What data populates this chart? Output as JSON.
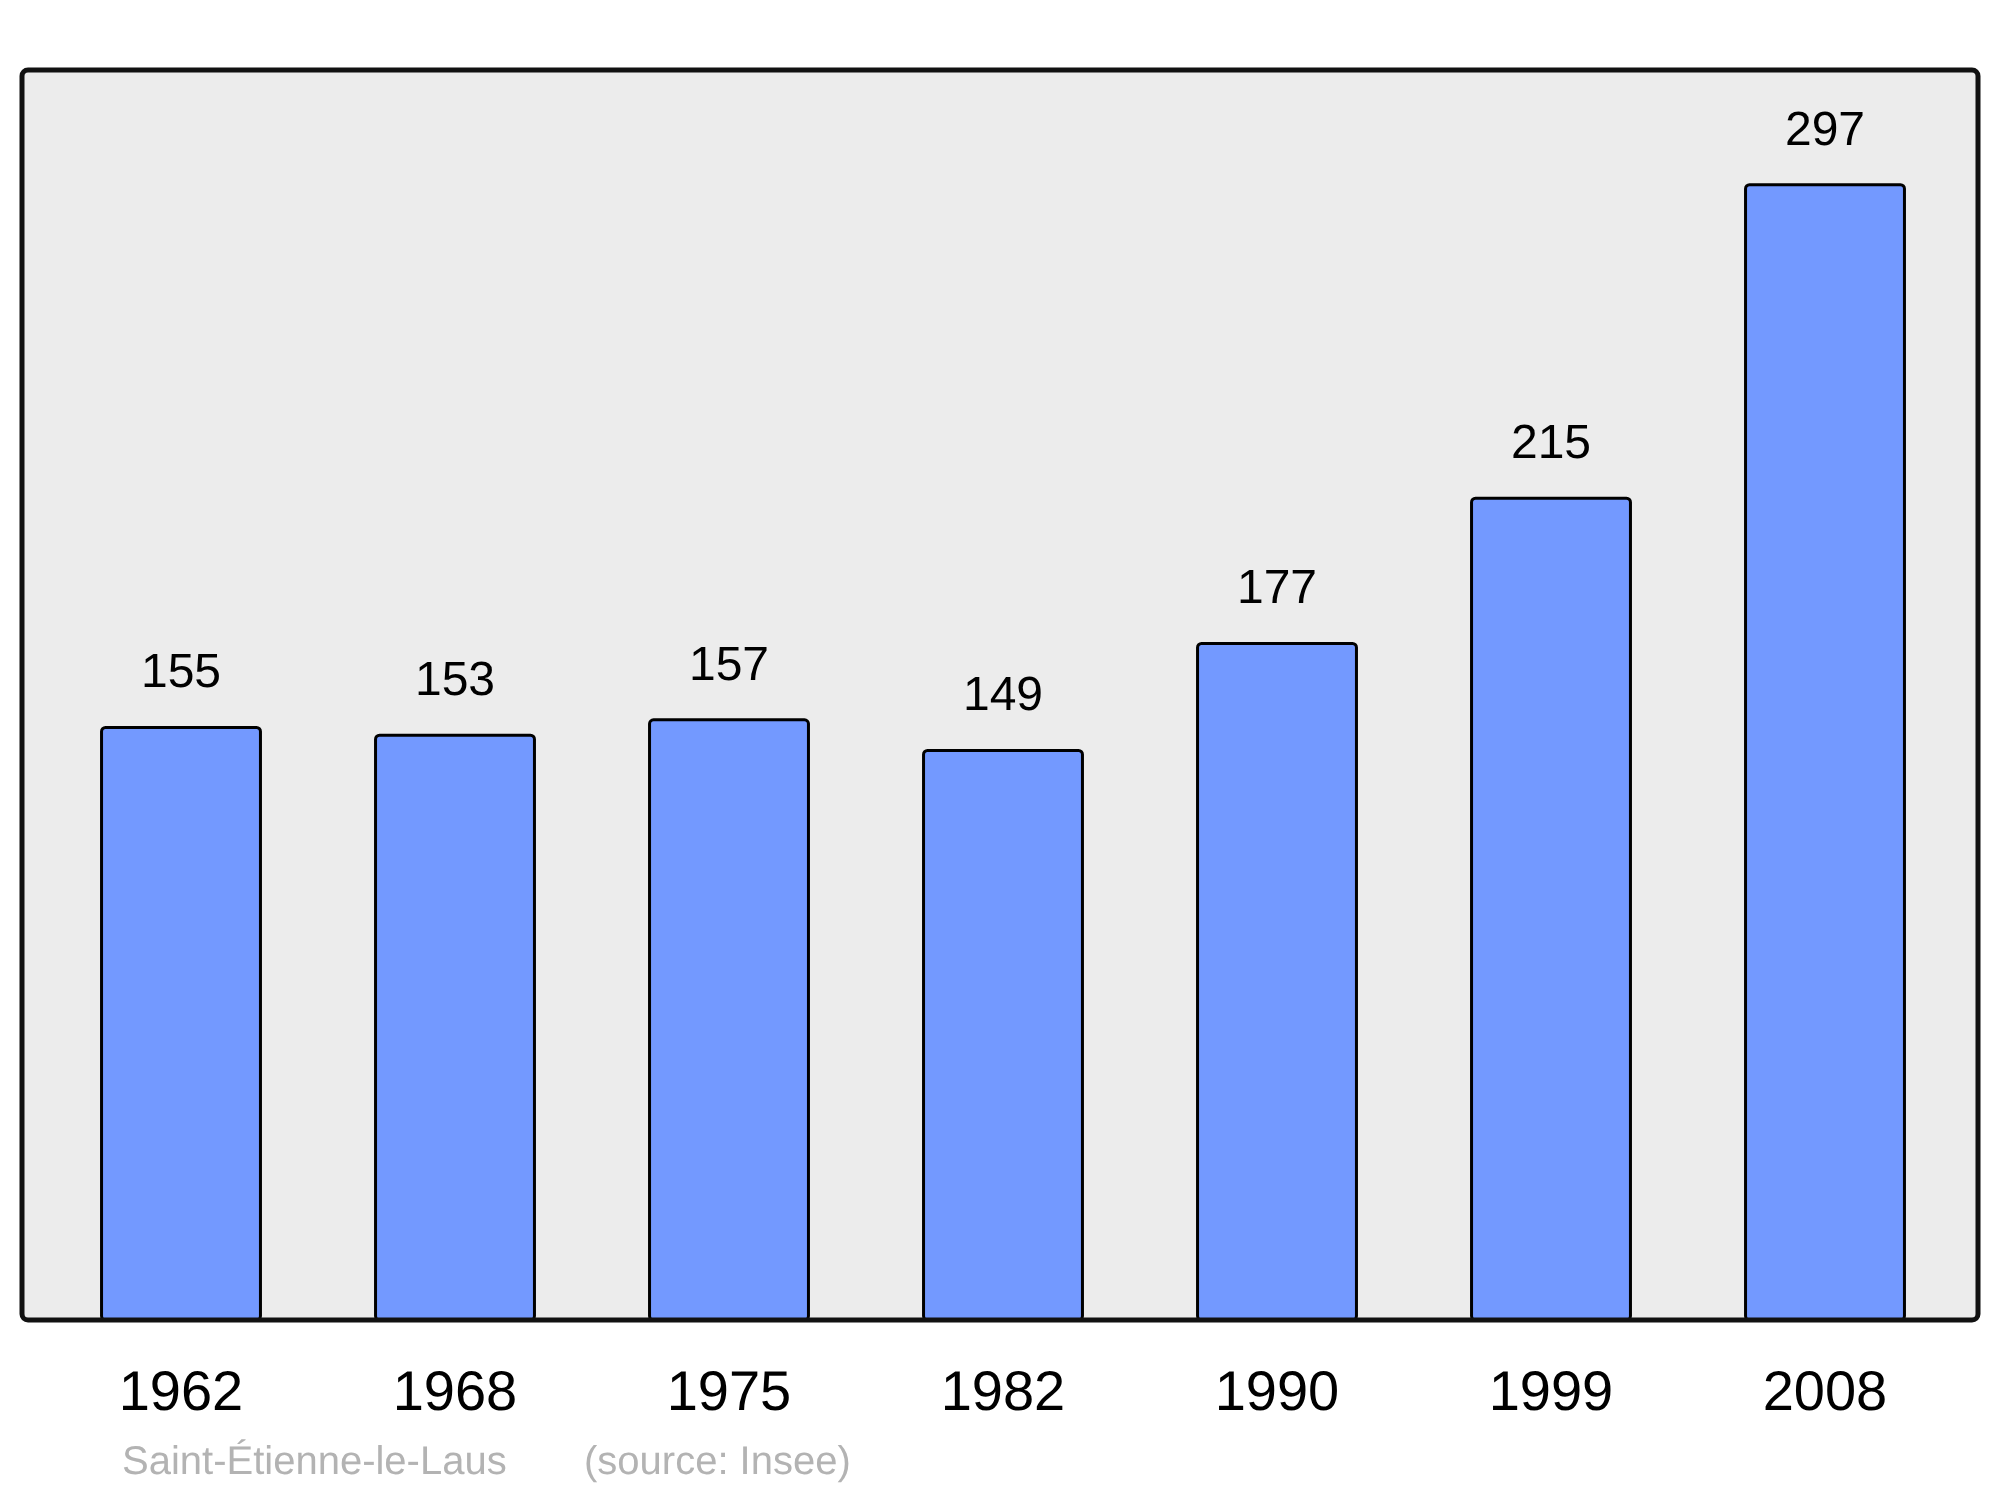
{
  "chart_data": {
    "type": "bar",
    "categories": [
      "1962",
      "1968",
      "1975",
      "1982",
      "1990",
      "1999",
      "2008"
    ],
    "values": [
      155,
      153,
      157,
      149,
      177,
      215,
      297
    ],
    "color": "#7399ff",
    "ylim": [
      0,
      327
    ],
    "data_labels": true,
    "tick_labels": "x",
    "annotations": [
      "Saint-Étienne-le-Laus",
      "(source: Insee)"
    ]
  }
}
